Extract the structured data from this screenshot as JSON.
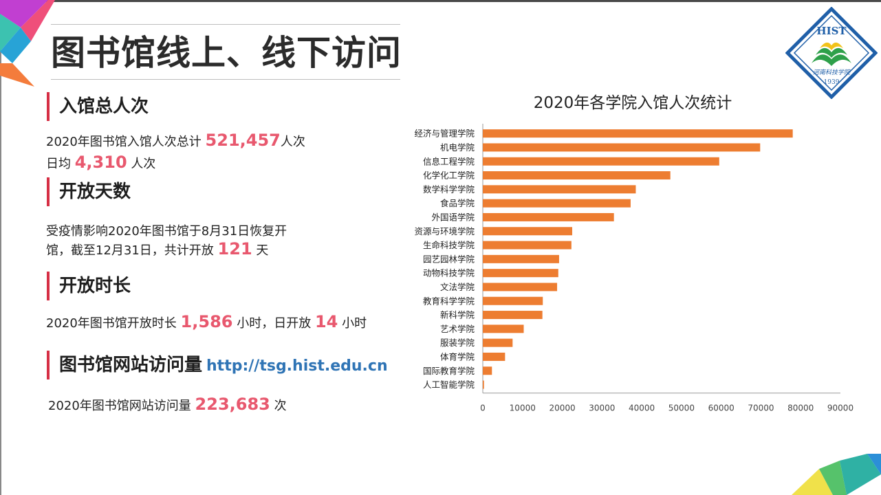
{
  "page": {
    "title": "图书馆线上、线下访问"
  },
  "sections": {
    "visits": {
      "heading": "入馆总人次",
      "line1_prefix": "2020年图书馆入馆人次总计",
      "line1_value": "521,457",
      "line1_suffix": "人次",
      "line2_prefix": "日均",
      "line2_value": "4,310",
      "line2_suffix": "人次"
    },
    "open_days": {
      "heading": "开放天数",
      "line1": "受疫情影响2020年图书馆于8月31日恢复开",
      "line2_prefix": "馆，截至12月31日，共计开放",
      "line2_value": "121",
      "line2_suffix": "天"
    },
    "open_hours": {
      "heading": "开放时长",
      "prefix": "2020年图书馆开放时长",
      "value1": "1,586",
      "middle": "小时，日开放",
      "value2": "14",
      "suffix": "小时"
    },
    "website": {
      "heading": "图书馆网站访问量",
      "url": "http://tsg.hist.edu.cn",
      "prefix": "2020年图书馆网站访问量",
      "value": "223,683",
      "suffix": "次"
    }
  },
  "logo": {
    "top_text": "HIST",
    "name_text": "河南科技学院",
    "year": "1939",
    "colors": {
      "border": "#1f5fa8",
      "green": "#2ea04a",
      "yellow": "#f2c21a"
    }
  },
  "colors": {
    "accent": "#e8586e",
    "heading_bar": "#d62f45",
    "bar": "#ed7d31",
    "link": "#2f74b5"
  },
  "chart_data": {
    "type": "bar",
    "orientation": "horizontal",
    "title": "2020年各学院入馆人次统计",
    "categories": [
      "经济与管理学院",
      "机电学院",
      "信息工程学院",
      "化学化工学院",
      "数学科学学院",
      "食品学院",
      "外国语学院",
      "资源与环境学院",
      "生命科技学院",
      "园艺园林学院",
      "动物科技学院",
      "文法学院",
      "教育科学学院",
      "新科学院",
      "艺术学院",
      "服装学院",
      "体育学院",
      "国际教育学院",
      "人工智能学院"
    ],
    "values": [
      78000,
      69800,
      59500,
      47200,
      38500,
      37200,
      33000,
      22500,
      22300,
      19200,
      19000,
      18700,
      15100,
      15000,
      10300,
      7500,
      5600,
      2300,
      300
    ],
    "xlim": [
      0,
      90000
    ],
    "xticks": [
      0,
      10000,
      20000,
      30000,
      40000,
      50000,
      60000,
      70000,
      80000,
      90000
    ],
    "grid": false,
    "legend": "none"
  }
}
